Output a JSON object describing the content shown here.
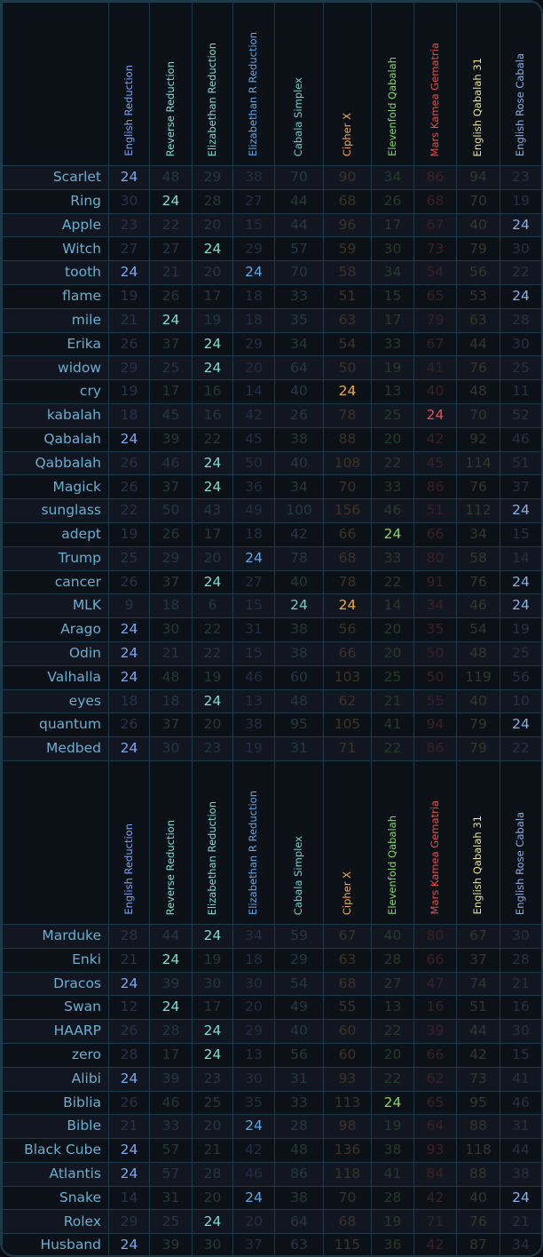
{
  "columns": [
    {
      "name": "English Reduction",
      "color": "#7aa6f0",
      "dim": "#27324a"
    },
    {
      "name": "Reverse Reduction",
      "color": "#7fdcd0",
      "dim": "#26363f"
    },
    {
      "name": "Elizabethan Reduction",
      "color": "#7fdcd0",
      "dim": "#26363f"
    },
    {
      "name": "Elizabethan R Reduction",
      "color": "#5fa8e8",
      "dim": "#222e44"
    },
    {
      "name": "Cabala Simplex",
      "color": "#6fcfc8",
      "dim": "#263840"
    },
    {
      "name": "Cipher X",
      "color": "#f0a840",
      "dim": "#3e3224"
    },
    {
      "name": "Elevenfold Qabalah",
      "color": "#80d860",
      "dim": "#263a28"
    },
    {
      "name": "Mars Kamea Gematria",
      "color": "#e05050",
      "dim": "#3a2026"
    },
    {
      "name": "English Qabalah 31",
      "color": "#e8e090",
      "dim": "#37362c"
    },
    {
      "name": "English Rose Cabala",
      "color": "#88b0e8",
      "dim": "#273042"
    }
  ],
  "highlight_value": 24,
  "sections": [
    {
      "rows": [
        [
          "Scarlet",
          24,
          48,
          29,
          38,
          70,
          90,
          34,
          86,
          94,
          23
        ],
        [
          "Ring",
          30,
          24,
          28,
          27,
          44,
          68,
          26,
          68,
          70,
          19
        ],
        [
          "Apple",
          23,
          22,
          20,
          15,
          44,
          96,
          17,
          67,
          40,
          24
        ],
        [
          "Witch",
          27,
          27,
          24,
          29,
          57,
          59,
          30,
          73,
          79,
          30
        ],
        [
          "tooth",
          24,
          21,
          20,
          24,
          70,
          58,
          34,
          54,
          56,
          22
        ],
        [
          "flame",
          19,
          26,
          17,
          18,
          33,
          51,
          15,
          65,
          53,
          24
        ],
        [
          "mile",
          21,
          24,
          19,
          18,
          35,
          63,
          17,
          79,
          63,
          28
        ],
        [
          "Erika",
          26,
          37,
          24,
          29,
          34,
          54,
          33,
          67,
          44,
          30
        ],
        [
          "widow",
          29,
          25,
          24,
          20,
          64,
          50,
          19,
          41,
          76,
          25
        ],
        [
          "cry",
          19,
          17,
          16,
          14,
          40,
          24,
          13,
          40,
          48,
          11
        ],
        [
          "kabalah",
          18,
          45,
          16,
          42,
          26,
          78,
          25,
          24,
          70,
          52
        ],
        [
          "Qabalah",
          24,
          39,
          22,
          45,
          38,
          88,
          20,
          42,
          92,
          46
        ],
        [
          "Qabbalah",
          26,
          46,
          24,
          50,
          40,
          108,
          22,
          45,
          114,
          51
        ],
        [
          "Magick",
          26,
          37,
          24,
          36,
          34,
          70,
          33,
          86,
          76,
          37
        ],
        [
          "sunglass",
          22,
          50,
          43,
          49,
          100,
          156,
          46,
          51,
          112,
          24
        ],
        [
          "adept",
          19,
          26,
          17,
          18,
          42,
          66,
          24,
          66,
          34,
          15
        ],
        [
          "Trump",
          25,
          29,
          20,
          24,
          78,
          68,
          33,
          80,
          58,
          14
        ],
        [
          "cancer",
          26,
          37,
          24,
          27,
          40,
          78,
          22,
          91,
          76,
          24
        ],
        [
          "MLK",
          9,
          18,
          6,
          15,
          24,
          24,
          14,
          34,
          46,
          24
        ],
        [
          "Arago",
          24,
          30,
          22,
          31,
          38,
          56,
          20,
          35,
          54,
          19
        ],
        [
          "Odin",
          24,
          21,
          22,
          15,
          38,
          66,
          20,
          50,
          48,
          25
        ],
        [
          "Valhalla",
          24,
          48,
          19,
          46,
          60,
          103,
          25,
          50,
          119,
          56
        ],
        [
          "eyes",
          18,
          18,
          24,
          13,
          48,
          62,
          21,
          55,
          40,
          10
        ],
        [
          "quantum",
          26,
          37,
          20,
          38,
          95,
          105,
          41,
          94,
          79,
          24
        ],
        [
          "Medbed",
          24,
          30,
          23,
          19,
          31,
          71,
          22,
          86,
          79,
          22
        ]
      ]
    },
    {
      "rows": [
        [
          "Marduke",
          28,
          44,
          24,
          34,
          59,
          67,
          40,
          80,
          67,
          30
        ],
        [
          "Enki",
          21,
          24,
          19,
          18,
          29,
          63,
          28,
          66,
          37,
          28
        ],
        [
          "Dracos",
          24,
          39,
          30,
          30,
          54,
          68,
          27,
          47,
          74,
          21
        ],
        [
          "Swan",
          12,
          24,
          17,
          20,
          49,
          55,
          13,
          16,
          51,
          16
        ],
        [
          "HAARP",
          26,
          28,
          24,
          29,
          40,
          60,
          22,
          39,
          44,
          30
        ],
        [
          "zero",
          28,
          17,
          24,
          13,
          56,
          60,
          20,
          66,
          42,
          15
        ],
        [
          "Alibi",
          24,
          39,
          23,
          30,
          31,
          93,
          22,
          62,
          73,
          41
        ],
        [
          "Biblia",
          26,
          46,
          25,
          35,
          33,
          113,
          24,
          65,
          95,
          46
        ],
        [
          "Bible",
          21,
          33,
          20,
          24,
          28,
          98,
          19,
          64,
          88,
          31
        ],
        [
          "Black Cube",
          24,
          57,
          21,
          42,
          48,
          136,
          38,
          93,
          118,
          44
        ],
        [
          "Atlantis",
          24,
          57,
          28,
          46,
          86,
          118,
          41,
          84,
          88,
          38
        ],
        [
          "Snake",
          14,
          31,
          20,
          24,
          38,
          70,
          28,
          42,
          40,
          24
        ],
        [
          "Rolex",
          29,
          25,
          24,
          20,
          64,
          68,
          19,
          71,
          76,
          21
        ],
        [
          "Husband",
          24,
          39,
          30,
          37,
          63,
          115,
          36,
          42,
          87,
          34
        ]
      ]
    }
  ]
}
